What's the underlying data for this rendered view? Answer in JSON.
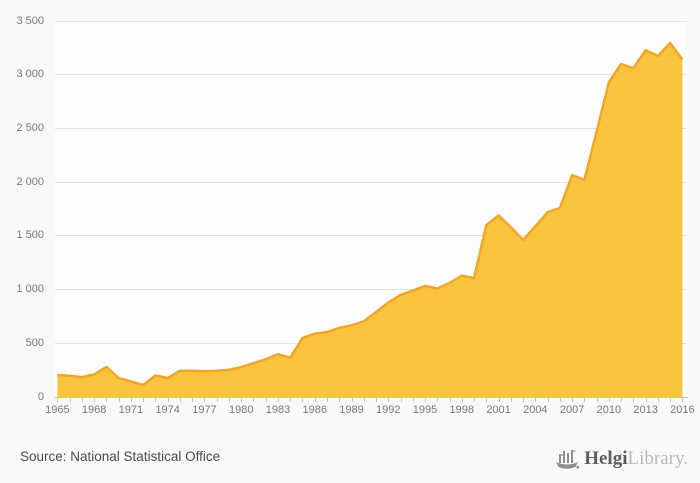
{
  "chart_data": {
    "type": "area",
    "title": "",
    "xlabel": "",
    "ylabel": "",
    "x": [
      1965,
      1966,
      1967,
      1968,
      1969,
      1970,
      1971,
      1972,
      1973,
      1974,
      1975,
      1976,
      1977,
      1978,
      1979,
      1980,
      1981,
      1982,
      1983,
      1984,
      1985,
      1986,
      1987,
      1988,
      1989,
      1990,
      1991,
      1992,
      1993,
      1994,
      1995,
      1996,
      1997,
      1998,
      1999,
      2000,
      2001,
      2002,
      2003,
      2004,
      2005,
      2006,
      2007,
      2008,
      2009,
      2010,
      2011,
      2012,
      2013,
      2014,
      2015,
      2016
    ],
    "values": [
      205,
      198,
      185,
      210,
      280,
      178,
      145,
      113,
      200,
      177,
      244,
      244,
      239,
      244,
      253,
      278,
      315,
      352,
      398,
      366,
      548,
      590,
      605,
      644,
      667,
      705,
      790,
      880,
      950,
      990,
      1034,
      1010,
      1062,
      1130,
      1108,
      1600,
      1690,
      1580,
      1462,
      1588,
      1720,
      1760,
      2065,
      2022,
      2470,
      2930,
      3100,
      3062,
      3228,
      3176,
      3295,
      3142
    ],
    "ylim": [
      0,
      3500
    ],
    "ytick_step": 500,
    "ytick_labels": [
      "0",
      "500",
      "1 000",
      "1 500",
      "2 000",
      "2 500",
      "3 000",
      "3 500"
    ],
    "xtick_label_years": [
      1965,
      1968,
      1971,
      1974,
      1977,
      1980,
      1983,
      1986,
      1989,
      1992,
      1995,
      1998,
      2001,
      2004,
      2007,
      2010,
      2013,
      2016
    ],
    "grid": true,
    "legend": "none",
    "area_color": "#f8bc28",
    "area_opacity": 0.9,
    "line_color": "#efa62a",
    "gridline_color": "#e2e2e2",
    "axis_color": "#b9c2d8",
    "tick_label_color": "#777777"
  },
  "footer": {
    "source_label": "Source: National Statistical Office",
    "brand_bold": "Helgi",
    "brand_light": "Library."
  }
}
